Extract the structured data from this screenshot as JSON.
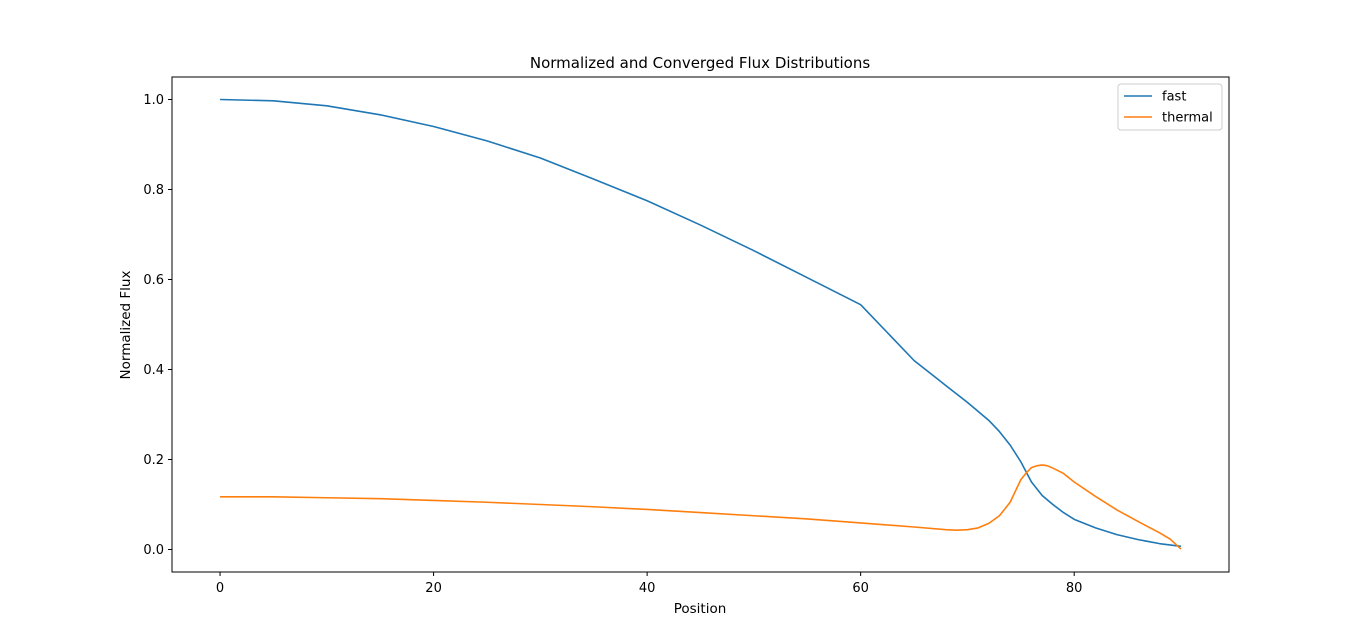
{
  "chart_data": {
    "type": "line",
    "title": "Normalized and Converged Flux Distributions",
    "xlabel": "Position",
    "ylabel": "Normalized Flux",
    "xlim": [
      -4.5,
      94.5
    ],
    "ylim": [
      -0.05,
      1.05
    ],
    "xticks": [
      0,
      20,
      40,
      60,
      80
    ],
    "yticks": [
      0.0,
      0.2,
      0.4,
      0.6,
      0.8,
      1.0
    ],
    "xtick_labels": [
      "0",
      "20",
      "40",
      "60",
      "80"
    ],
    "ytick_labels": [
      "0.0",
      "0.2",
      "0.4",
      "0.6",
      "0.8",
      "1.0"
    ],
    "grid": false,
    "legend_position": "top-right",
    "series": [
      {
        "name": "fast",
        "color": "#1f77b4",
        "x": [
          0,
          5,
          10,
          15,
          20,
          25,
          30,
          35,
          40,
          45,
          50,
          55,
          60,
          65,
          68,
          70,
          72,
          73,
          74,
          75,
          76,
          77,
          78,
          79,
          80,
          82,
          84,
          86,
          88,
          90
        ],
        "y": [
          1.0,
          0.997,
          0.986,
          0.966,
          0.94,
          0.908,
          0.87,
          0.823,
          0.775,
          0.721,
          0.664,
          0.604,
          0.544,
          0.42,
          0.364,
          0.327,
          0.287,
          0.262,
          0.232,
          0.195,
          0.15,
          0.12,
          0.1,
          0.082,
          0.067,
          0.048,
          0.033,
          0.022,
          0.013,
          0.007
        ]
      },
      {
        "name": "thermal",
        "color": "#ff7f0e",
        "x": [
          0,
          5,
          10,
          15,
          20,
          25,
          30,
          35,
          40,
          45,
          50,
          55,
          60,
          65,
          68,
          69,
          70,
          71,
          72,
          73,
          74,
          75,
          75.5,
          76,
          76.5,
          77,
          77.5,
          78,
          79,
          80,
          82,
          84,
          86,
          88,
          89,
          90
        ],
        "y": [
          0.117,
          0.117,
          0.115,
          0.113,
          0.109,
          0.105,
          0.1,
          0.095,
          0.089,
          0.082,
          0.075,
          0.068,
          0.059,
          0.05,
          0.044,
          0.043,
          0.044,
          0.048,
          0.058,
          0.075,
          0.105,
          0.155,
          0.17,
          0.182,
          0.186,
          0.188,
          0.186,
          0.181,
          0.169,
          0.15,
          0.118,
          0.088,
          0.062,
          0.037,
          0.023,
          0.001
        ]
      }
    ]
  }
}
